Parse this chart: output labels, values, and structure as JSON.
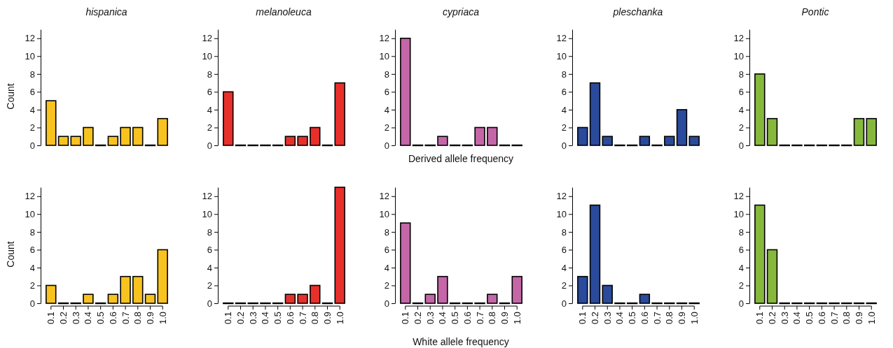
{
  "chart_data": [
    {
      "type": "bar",
      "title": "hispanica",
      "ylabel": "Count",
      "categories": [
        "0.1",
        "0.2",
        "0.3",
        "0.4",
        "0.5",
        "0.6",
        "0.7",
        "0.8",
        "0.9",
        "1.0"
      ],
      "values": [
        5,
        1,
        1,
        2,
        0,
        1,
        2,
        2,
        0,
        3
      ],
      "color": "#f9c31f",
      "ylim": [
        0,
        13
      ],
      "yticks": [
        0,
        2,
        4,
        6,
        8,
        10,
        12
      ],
      "tick_labels": "y"
    },
    {
      "type": "bar",
      "title": "melanoleuca",
      "categories": [
        "0.1",
        "0.2",
        "0.3",
        "0.4",
        "0.5",
        "0.6",
        "0.7",
        "0.8",
        "0.9",
        "1.0"
      ],
      "values": [
        6,
        0,
        0,
        0,
        0,
        1,
        1,
        2,
        0,
        7
      ],
      "color": "#e8302b",
      "ylim": [
        0,
        13
      ],
      "yticks": [
        0,
        2,
        4,
        6,
        8,
        10,
        12
      ],
      "tick_labels": "y"
    },
    {
      "type": "bar",
      "title": "cypriaca",
      "xlabel": "Derived allele frequency",
      "categories": [
        "0.1",
        "0.2",
        "0.3",
        "0.4",
        "0.5",
        "0.6",
        "0.7",
        "0.8",
        "0.9",
        "1.0"
      ],
      "values": [
        12,
        0,
        0,
        1,
        0,
        0,
        2,
        2,
        0,
        0
      ],
      "color": "#c466a7",
      "ylim": [
        0,
        13
      ],
      "yticks": [
        0,
        2,
        4,
        6,
        8,
        10,
        12
      ],
      "tick_labels": "y"
    },
    {
      "type": "bar",
      "title": "pleschanka",
      "categories": [
        "0.1",
        "0.2",
        "0.3",
        "0.4",
        "0.5",
        "0.6",
        "0.7",
        "0.8",
        "0.9",
        "1.0"
      ],
      "values": [
        2,
        7,
        1,
        0,
        0,
        1,
        0,
        1,
        4,
        1
      ],
      "color": "#2a4a9b",
      "ylim": [
        0,
        13
      ],
      "yticks": [
        0,
        2,
        4,
        6,
        8,
        10,
        12
      ],
      "tick_labels": "y"
    },
    {
      "type": "bar",
      "title": "Pontic",
      "categories": [
        "0.1",
        "0.2",
        "0.3",
        "0.4",
        "0.5",
        "0.6",
        "0.7",
        "0.8",
        "0.9",
        "1.0"
      ],
      "values": [
        8,
        3,
        0,
        0,
        0,
        0,
        0,
        0,
        3,
        3
      ],
      "color": "#86b83c",
      "ylim": [
        0,
        13
      ],
      "yticks": [
        0,
        2,
        4,
        6,
        8,
        10,
        12
      ],
      "tick_labels": "y"
    },
    {
      "type": "bar",
      "ylabel": "Count",
      "categories": [
        "0.1",
        "0.2",
        "0.3",
        "0.4",
        "0.5",
        "0.6",
        "0.7",
        "0.8",
        "0.9",
        "1.0"
      ],
      "values": [
        2,
        0,
        0,
        1,
        0,
        1,
        3,
        3,
        1,
        6
      ],
      "color": "#f9c31f",
      "ylim": [
        0,
        13
      ],
      "yticks": [
        0,
        2,
        4,
        6,
        8,
        10,
        12
      ]
    },
    {
      "type": "bar",
      "categories": [
        "0.1",
        "0.2",
        "0.3",
        "0.4",
        "0.5",
        "0.6",
        "0.7",
        "0.8",
        "0.9",
        "1.0"
      ],
      "values": [
        0,
        0,
        0,
        0,
        0,
        1,
        1,
        2,
        0,
        13
      ],
      "color": "#e8302b",
      "ylim": [
        0,
        13
      ],
      "yticks": [
        0,
        2,
        4,
        6,
        8,
        10,
        12
      ]
    },
    {
      "type": "bar",
      "xlabel": "White allele frequency",
      "categories": [
        "0.1",
        "0.2",
        "0.3",
        "0.4",
        "0.5",
        "0.6",
        "0.7",
        "0.8",
        "0.9",
        "1.0"
      ],
      "values": [
        9,
        0,
        1,
        3,
        0,
        0,
        0,
        1,
        0,
        3
      ],
      "color": "#c466a7",
      "ylim": [
        0,
        13
      ],
      "yticks": [
        0,
        2,
        4,
        6,
        8,
        10,
        12
      ]
    },
    {
      "type": "bar",
      "categories": [
        "0.1",
        "0.2",
        "0.3",
        "0.4",
        "0.5",
        "0.6",
        "0.7",
        "0.8",
        "0.9",
        "1.0"
      ],
      "values": [
        3,
        11,
        2,
        0,
        0,
        1,
        0,
        0,
        0,
        0
      ],
      "color": "#2a4a9b",
      "ylim": [
        0,
        13
      ],
      "yticks": [
        0,
        2,
        4,
        6,
        8,
        10,
        12
      ]
    },
    {
      "type": "bar",
      "categories": [
        "0.1",
        "0.2",
        "0.3",
        "0.4",
        "0.5",
        "0.6",
        "0.7",
        "0.8",
        "0.9",
        "1.0"
      ],
      "values": [
        11,
        6,
        0,
        0,
        0,
        0,
        0,
        0,
        0,
        0
      ],
      "color": "#86b83c",
      "ylim": [
        0,
        13
      ],
      "yticks": [
        0,
        2,
        4,
        6,
        8,
        10,
        12
      ]
    }
  ]
}
